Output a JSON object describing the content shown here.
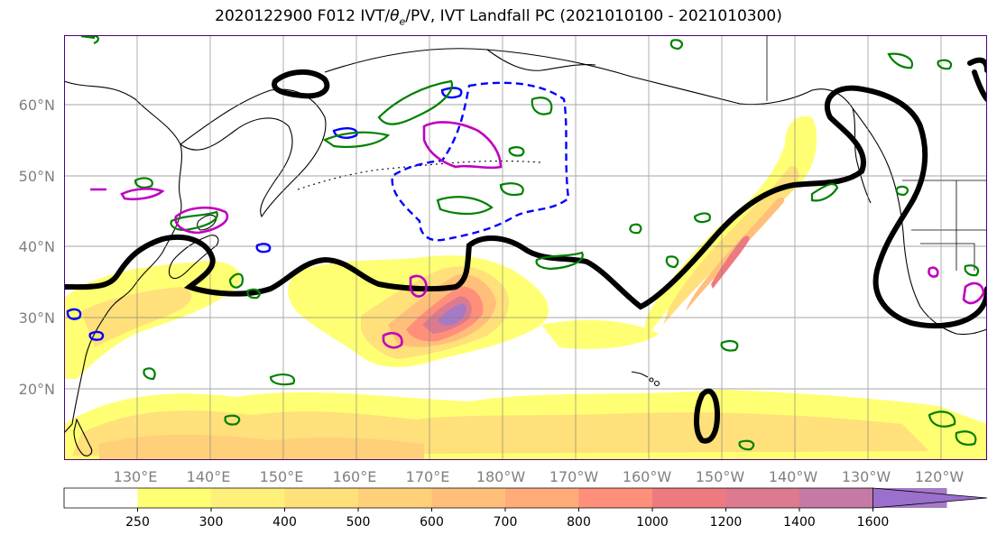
{
  "title": {
    "prefix": "2020122900 F012 IVT/",
    "theta": "θ",
    "theta_sub": "e",
    "suffix": "/PV, IVT Landfall PC (2021010100 - 2021010300)"
  },
  "map": {
    "projection": "PlateCarree",
    "lon_range": [
      120,
      246
    ],
    "lat_range": [
      10,
      70
    ],
    "coastlines": true,
    "borders": true,
    "gridlines": true
  },
  "axes": {
    "lon_ticks": [
      "130°E",
      "140°E",
      "150°E",
      "160°E",
      "170°E",
      "180°W",
      "170°W",
      "160°W",
      "150°W",
      "140°W",
      "130°W",
      "120°W"
    ],
    "lat_ticks": [
      "20°N",
      "30°N",
      "40°N",
      "50°N",
      "60°N"
    ]
  },
  "colorbar": {
    "ticks": [
      "250",
      "300",
      "400",
      "500",
      "600",
      "700",
      "800",
      "1000",
      "1200",
      "1400",
      "1600"
    ],
    "colors": [
      "#ffff73",
      "#fff07a",
      "#ffe07a",
      "#ffd07a",
      "#ffbf7a",
      "#ffab7a",
      "#ff8f7a",
      "#ee7a80",
      "#dc7a8f",
      "#c47aa5",
      "#a57ac6",
      "#9b6fcc"
    ],
    "extend": "max"
  },
  "layers": {
    "ivt_fill": "IVT shaded contours",
    "theta_e_contour_color": "#000000",
    "pv_positive_color": "#008000",
    "pv_negative_color": "#0000ff",
    "pv_high_color": "#c000c0"
  }
}
